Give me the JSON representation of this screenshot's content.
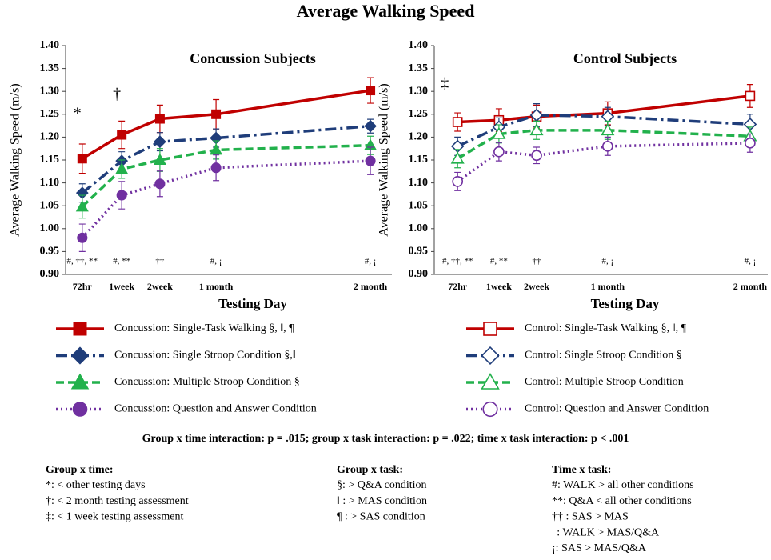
{
  "title": "Average Walking Speed",
  "interaction": "Group x time interaction: p = .015; group x task interaction: p = .022; time x task interaction: p < .001",
  "notes": [
    {
      "title": "Group x time:",
      "items": [
        "*: < other testing days",
        "†: < 2 month testing assessment",
        "‡: < 1 week testing assessment"
      ]
    },
    {
      "title": "Group x task:",
      "items": [
        "§: > Q&A condition",
        "‖ : > MAS condition",
        "¶ : > SAS condition"
      ]
    },
    {
      "title": "Time x task:",
      "items": [
        "#: WALK > all other conditions",
        "**: Q&A < all other conditions",
        "†† : SAS > MAS",
        "¦ : WALK > MAS/Q&A",
        "¡: SAS > MAS/Q&A"
      ]
    }
  ],
  "chart_data": [
    {
      "type": "line",
      "title": "Concussion Subjects",
      "hollow": false,
      "y_label": "Average Walking Speed (m/s)",
      "x_label": "Testing Day",
      "categories": [
        "72hr",
        "1week",
        "2week",
        "1 month",
        "2 month"
      ],
      "top_labels": [
        "*",
        "†",
        null,
        null,
        null
      ],
      "bottom_labels": [
        "#, ††, **",
        "#, **",
        "††",
        "#, ¡",
        "#, ¡"
      ],
      "ylim": [
        0.9,
        1.4
      ],
      "yticks": [
        {
          "value": 0.9,
          "label": "0.90"
        },
        {
          "value": 0.95,
          "label": "0.95"
        },
        {
          "value": 1.0,
          "label": "1.00"
        },
        {
          "value": 1.05,
          "label": "1.05"
        },
        {
          "value": 1.1,
          "label": "1.10"
        },
        {
          "value": 1.15,
          "label": "1.15"
        },
        {
          "value": 1.2,
          "label": "1.20"
        },
        {
          "value": 1.25,
          "label": "1.25"
        },
        {
          "value": 1.3,
          "label": "1.30"
        },
        {
          "value": 1.35,
          "label": "1.35"
        },
        {
          "value": 1.4,
          "label": "1.40"
        }
      ],
      "series": [
        {
          "name": "Concussion: Single-Task Walking §, ‖, ¶",
          "color": "#c00000",
          "marker": "square",
          "dash": "solid",
          "values": [
            1.153,
            1.205,
            1.24,
            1.25,
            1.302
          ],
          "errors": [
            0.032,
            0.03,
            0.03,
            0.032,
            0.028
          ]
        },
        {
          "name": "Concussion: Single Stroop Condition §,‖",
          "color": "#1f3d7a",
          "marker": "diamond",
          "dash": "dashdot",
          "values": [
            1.078,
            1.148,
            1.19,
            1.198,
            1.224
          ],
          "errors": [
            0.02,
            0.02,
            0.02,
            0.02,
            0.015
          ]
        },
        {
          "name": "Concussion: Multiple Stroop Condition §",
          "color": "#22b14c",
          "marker": "triangle",
          "dash": "dash",
          "values": [
            1.048,
            1.13,
            1.15,
            1.172,
            1.182
          ],
          "errors": [
            0.025,
            0.02,
            0.025,
            0.02,
            0.02
          ]
        },
        {
          "name": "Concussion: Question and Answer Condition",
          "color": "#7030a0",
          "marker": "circle",
          "dash": "dot",
          "values": [
            0.98,
            1.073,
            1.098,
            1.133,
            1.148
          ],
          "errors": [
            0.03,
            0.03,
            0.028,
            0.028,
            0.03
          ]
        }
      ]
    },
    {
      "type": "line",
      "title": "Control Subjects",
      "hollow": true,
      "y_label": "Average Walking Speed (m/s)",
      "x_label": "Testing Day",
      "categories": [
        "72hr",
        "1week",
        "2week",
        "1 month",
        "2 month"
      ],
      "top_labels": [
        "‡",
        null,
        null,
        null,
        null
      ],
      "bottom_labels": [
        "#, ††, **",
        "#, **",
        "††",
        "#, ¡",
        "#, ¡"
      ],
      "ylim": [
        0.9,
        1.4
      ],
      "yticks": [
        {
          "value": 0.9,
          "label": "0.90"
        },
        {
          "value": 0.95,
          "label": "0.95"
        },
        {
          "value": 1.0,
          "label": "1.00"
        },
        {
          "value": 1.05,
          "label": "1.05"
        },
        {
          "value": 1.1,
          "label": "1.10"
        },
        {
          "value": 1.15,
          "label": "1.15"
        },
        {
          "value": 1.2,
          "label": "1.20"
        },
        {
          "value": 1.25,
          "label": "1.25"
        },
        {
          "value": 1.3,
          "label": "1.30"
        },
        {
          "value": 1.35,
          "label": "1.35"
        },
        {
          "value": 1.4,
          "label": "1.40"
        }
      ],
      "series": [
        {
          "name": "Control: Single-Task Walking §, ‖, ¶",
          "color": "#c00000",
          "marker": "square",
          "dash": "solid",
          "values": [
            1.233,
            1.237,
            1.245,
            1.252,
            1.29
          ],
          "errors": [
            0.02,
            0.025,
            0.025,
            0.025,
            0.025
          ]
        },
        {
          "name": "Control: Single Stroop Condition §",
          "color": "#1f3d7a",
          "marker": "diamond",
          "dash": "dashdot",
          "values": [
            1.18,
            1.222,
            1.248,
            1.245,
            1.228
          ],
          "errors": [
            0.02,
            0.02,
            0.025,
            0.02,
            0.022
          ]
        },
        {
          "name": "Control: Multiple Stroop Condition",
          "color": "#22b14c",
          "marker": "triangle",
          "dash": "dash",
          "values": [
            1.153,
            1.207,
            1.215,
            1.215,
            1.202
          ],
          "errors": [
            0.02,
            0.02,
            0.02,
            0.02,
            0.02
          ]
        },
        {
          "name": "Control: Question and Answer Condition",
          "color": "#7030a0",
          "marker": "circle",
          "dash": "dot",
          "values": [
            1.103,
            1.168,
            1.16,
            1.18,
            1.187
          ],
          "errors": [
            0.02,
            0.02,
            0.018,
            0.02,
            0.02
          ]
        }
      ]
    }
  ]
}
